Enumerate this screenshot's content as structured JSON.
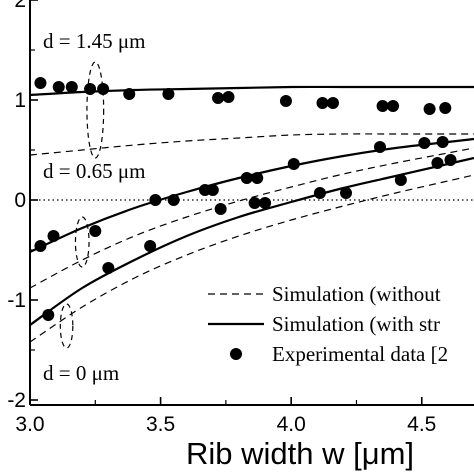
{
  "chart_data": {
    "type": "scatter",
    "xlabel": "Rib width w [μm]",
    "xlim": [
      3.0,
      4.7
    ],
    "ylim": [
      -2.05,
      2.0
    ],
    "x_ticks": [
      3.0,
      3.5,
      4.0,
      4.5
    ],
    "x_tick_labels": [
      "3.0",
      "3.5",
      "4.0",
      "4.5"
    ],
    "y_ticks": [
      -2,
      -1,
      0,
      1,
      2
    ],
    "y_tick_labels": [
      "-2",
      "-1",
      "0",
      "1",
      "2"
    ],
    "annotations": [
      {
        "text": "d = 1.45 μm",
        "x": 3.05,
        "y": 1.52
      },
      {
        "text": "d = 0.65 μm",
        "x": 3.05,
        "y": 0.22
      },
      {
        "text": "d = 0 μm",
        "x": 3.05,
        "y": -1.8
      }
    ],
    "group_ellipses": [
      {
        "cx": 3.25,
        "cy": 0.9,
        "rx": 0.032,
        "ry": 0.48
      },
      {
        "cx": 3.2,
        "cy": -0.42,
        "rx": 0.026,
        "ry": 0.25
      },
      {
        "cx": 3.14,
        "cy": -1.26,
        "rx": 0.024,
        "ry": 0.22
      }
    ],
    "reference_line": {
      "y": 0,
      "style": "dotted"
    },
    "legend": {
      "placement": "bottom-right",
      "entries": [
        {
          "label": "Simulation (without",
          "style": "dashed"
        },
        {
          "label": "Simulation (with str",
          "style": "solid"
        },
        {
          "label": "Experimental data [2",
          "style": "marker"
        }
      ]
    },
    "series": [
      {
        "style": "solid",
        "x": [
          3.0,
          3.2,
          3.4,
          3.6,
          3.8,
          4.0,
          4.2,
          4.4,
          4.6,
          4.7
        ],
        "y": [
          1.05,
          1.08,
          1.1,
          1.11,
          1.12,
          1.13,
          1.13,
          1.13,
          1.13,
          1.13
        ]
      },
      {
        "style": "dashed",
        "x": [
          3.0,
          3.2,
          3.4,
          3.6,
          3.8,
          4.0,
          4.2,
          4.4,
          4.6,
          4.7
        ],
        "y": [
          0.45,
          0.5,
          0.55,
          0.59,
          0.62,
          0.65,
          0.66,
          0.66,
          0.66,
          0.66
        ]
      },
      {
        "style": "solid",
        "x": [
          3.0,
          3.2,
          3.4,
          3.6,
          3.8,
          4.0,
          4.2,
          4.4,
          4.6,
          4.7
        ],
        "y": [
          -0.52,
          -0.28,
          -0.08,
          0.08,
          0.22,
          0.34,
          0.44,
          0.52,
          0.58,
          0.61
        ]
      },
      {
        "style": "dashed",
        "x": [
          3.0,
          3.2,
          3.4,
          3.6,
          3.8,
          4.0,
          4.2,
          4.4,
          4.6,
          4.7
        ],
        "y": [
          -0.88,
          -0.6,
          -0.36,
          -0.17,
          -0.01,
          0.13,
          0.26,
          0.37,
          0.47,
          0.52
        ]
      },
      {
        "style": "solid",
        "x": [
          3.0,
          3.2,
          3.4,
          3.6,
          3.8,
          4.0,
          4.2,
          4.4,
          4.6,
          4.7
        ],
        "y": [
          -1.25,
          -0.88,
          -0.6,
          -0.36,
          -0.17,
          -0.02,
          0.12,
          0.24,
          0.36,
          0.42
        ]
      },
      {
        "style": "dashed",
        "x": [
          3.0,
          3.2,
          3.4,
          3.6,
          3.8,
          4.0,
          4.2,
          4.4,
          4.6,
          4.7
        ],
        "y": [
          -1.42,
          -1.07,
          -0.78,
          -0.55,
          -0.36,
          -0.2,
          -0.06,
          0.07,
          0.19,
          0.25
        ]
      },
      {
        "style": "marker",
        "x": [
          3.04,
          3.11,
          3.16,
          3.23,
          3.28,
          3.38,
          3.53,
          3.72,
          3.76,
          3.98,
          4.12,
          4.16,
          4.35,
          4.39,
          4.53,
          4.59
        ],
        "y": [
          1.17,
          1.13,
          1.13,
          1.11,
          1.11,
          1.06,
          1.06,
          1.02,
          1.03,
          0.99,
          0.97,
          0.97,
          0.94,
          0.94,
          0.91,
          0.92
        ]
      },
      {
        "style": "marker",
        "x": [
          3.48,
          3.55,
          3.67,
          3.7,
          3.83,
          3.87,
          4.01,
          4.34,
          4.51,
          4.58
        ],
        "y": [
          0.0,
          0.0,
          0.1,
          0.1,
          0.22,
          0.22,
          0.36,
          0.53,
          0.57,
          0.58
        ]
      },
      {
        "style": "marker",
        "x": [
          3.04,
          3.09,
          3.25,
          3.3,
          3.46,
          3.73,
          3.86,
          3.9,
          4.11,
          4.21,
          4.42,
          4.56,
          4.61
        ],
        "y": [
          -0.46,
          -0.36,
          -0.31,
          -0.68,
          -0.46,
          -0.09,
          -0.03,
          -0.03,
          0.07,
          0.07,
          0.2,
          0.37,
          0.4
        ]
      },
      {
        "style": "marker",
        "x": [
          3.07
        ],
        "y": [
          -1.15
        ]
      }
    ]
  }
}
